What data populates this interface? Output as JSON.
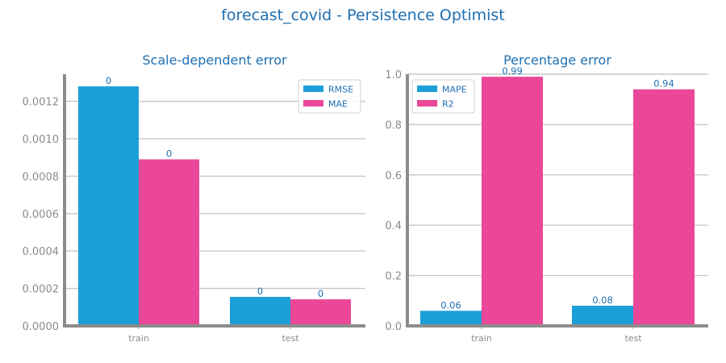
{
  "title": "forecast_covid - Persistence Optimist",
  "colors": {
    "blue": "#1b9fd8",
    "pink": "#ea4799",
    "title": "#1f6fb2",
    "axis": "#8c8c8c",
    "grid": "#c8c8c8"
  },
  "chart_data": [
    {
      "type": "bar",
      "title": "Scale-dependent error",
      "categories": [
        "train",
        "test"
      ],
      "series": [
        {
          "name": "RMSE",
          "color": "#1b9fd8",
          "values": [
            0.00128,
            0.000155
          ],
          "labels": [
            "0",
            "0"
          ]
        },
        {
          "name": "MAE",
          "color": "#ea4799",
          "values": [
            0.00089,
            0.000142
          ],
          "labels": [
            "0",
            "0"
          ]
        }
      ],
      "ylim": [
        0,
        0.001345
      ],
      "yticks": [
        0,
        0.0002,
        0.0004,
        0.0006,
        0.0008,
        0.001,
        0.0012
      ],
      "ytick_labels": [
        "0.0000",
        "0.0002",
        "0.0004",
        "0.0006",
        "0.0008",
        "0.0010",
        "0.0012"
      ],
      "legend_position": "top-right",
      "grid": true
    },
    {
      "type": "bar",
      "title": "Percentage error",
      "categories": [
        "train",
        "test"
      ],
      "series": [
        {
          "name": "MAPE",
          "color": "#1b9fd8",
          "values": [
            0.06,
            0.08
          ],
          "labels": [
            "0.06",
            "0.08"
          ]
        },
        {
          "name": "R2",
          "color": "#ea4799",
          "values": [
            0.99,
            0.94
          ],
          "labels": [
            "0.99",
            "0.94"
          ]
        }
      ],
      "ylim": [
        0,
        1.0
      ],
      "yticks": [
        0,
        0.2,
        0.4,
        0.6,
        0.8,
        1.0
      ],
      "ytick_labels": [
        "0.0",
        "0.2",
        "0.4",
        "0.6",
        "0.8",
        "1.0"
      ],
      "legend_position": "top-left",
      "grid": true
    }
  ]
}
